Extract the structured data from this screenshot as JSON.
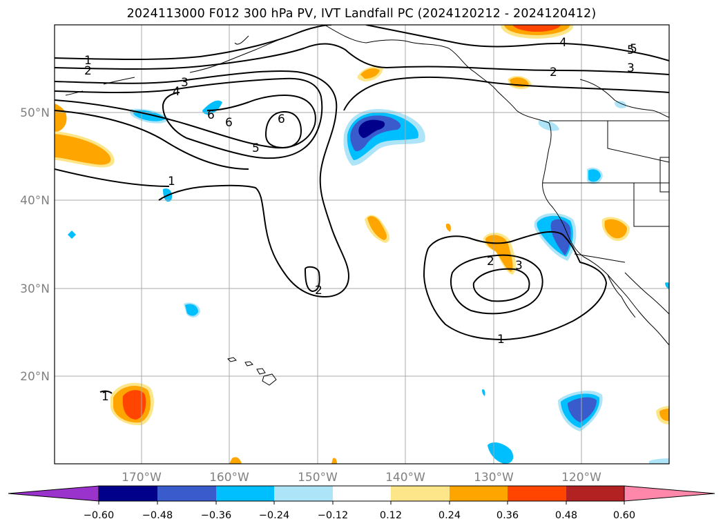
{
  "title": "2024113000 F012 300 hPa PV, IVT Landfall PC (2024120212 - 2024120412)",
  "map": {
    "lat_labels": [
      "50°N",
      "40°N",
      "30°N",
      "20°N"
    ],
    "lon_labels": [
      "170°W",
      "160°W",
      "150°W",
      "140°W",
      "130°W",
      "120°W"
    ],
    "contour_labels": [
      {
        "text": "1"
      },
      {
        "text": "2"
      },
      {
        "text": "3"
      },
      {
        "text": "4"
      },
      {
        "text": "5"
      },
      {
        "text": "6"
      },
      {
        "text": "6"
      },
      {
        "text": "6"
      },
      {
        "text": "5"
      },
      {
        "text": "1"
      },
      {
        "text": "2"
      },
      {
        "text": "4"
      },
      {
        "text": "5"
      },
      {
        "text": "3"
      },
      {
        "text": "2"
      },
      {
        "text": "2"
      },
      {
        "text": "3"
      },
      {
        "text": "1"
      },
      {
        "text": "1"
      }
    ]
  },
  "colorbar": {
    "tick_labels": [
      "−0.60",
      "−0.48",
      "−0.36",
      "−0.24",
      "−0.12",
      "0.12",
      "0.24",
      "0.36",
      "0.48",
      "0.60"
    ],
    "colors": {
      "neg_extend": "#9933cc",
      "neg_060": "#00008b",
      "neg_048": "#3a5bcc",
      "neg_036": "#00bfff",
      "neg_024": "#aee4f7",
      "zero": "#ffffff",
      "pos_012": "#fde68a",
      "pos_024": "#ffa500",
      "pos_036": "#ff4500",
      "pos_048": "#b22222",
      "pos_extend": "#ff88aa"
    }
  }
}
